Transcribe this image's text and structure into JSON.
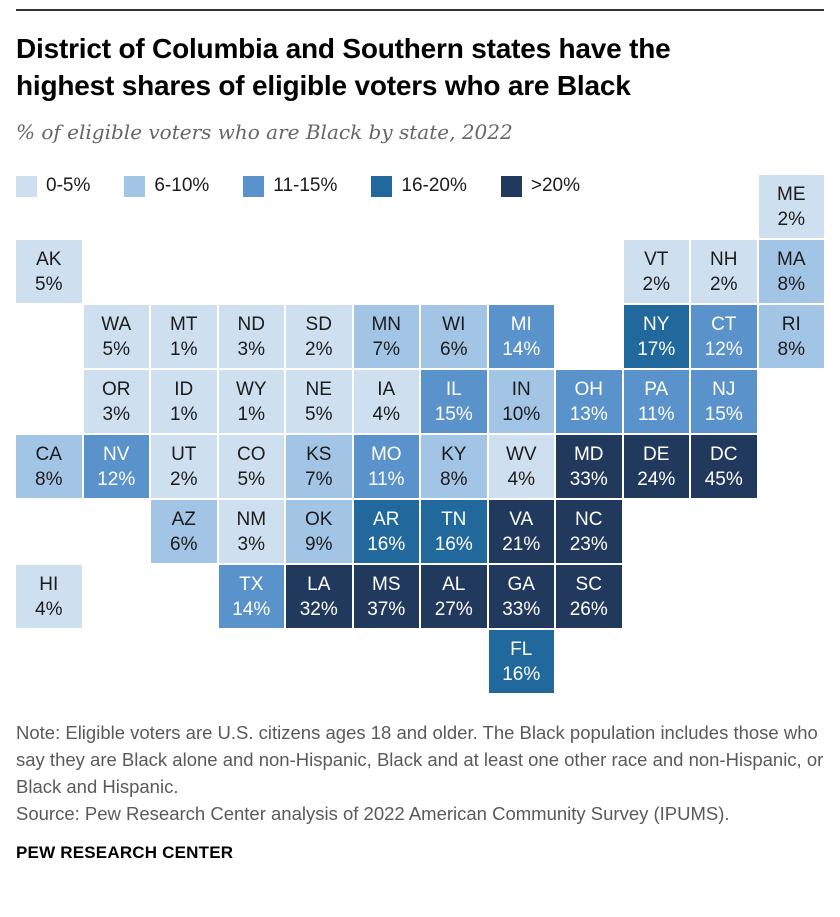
{
  "header": {
    "title_line1": "District of Columbia and Southern states have the",
    "title_line2": "highest shares of eligible voters who are Black",
    "subtitle": "% of eligible voters who are Black by state, 2022"
  },
  "legend": {
    "items": [
      {
        "label": "0-5%",
        "color": "#CEDFEF",
        "text_color": "#1c1c1c"
      },
      {
        "label": "6-10%",
        "color": "#A2C4E5",
        "text_color": "#1c1c1c"
      },
      {
        "label": "11-15%",
        "color": "#5A92CC",
        "text_color": "#ffffff"
      },
      {
        "label": "16-20%",
        "color": "#21699C",
        "text_color": "#ffffff"
      },
      {
        "label": ">20%",
        "color": "#22395E",
        "text_color": "#ffffff"
      }
    ]
  },
  "chart_data": {
    "type": "heatmap",
    "subtype": "us-state-tile-map",
    "title": "District of Columbia and Southern states have the highest shares of eligible voters who are Black",
    "subtitle": "% of eligible voters who are Black by state, 2022",
    "unit": "percent",
    "buckets": [
      "0-5%",
      "6-10%",
      "11-15%",
      "16-20%",
      ">20%"
    ],
    "legend_position": "top-left",
    "states": [
      {
        "abbr": "ME",
        "pct": 2,
        "label": "2%",
        "bucket": 0,
        "row": 1,
        "col": 12
      },
      {
        "abbr": "AK",
        "pct": 5,
        "label": "5%",
        "bucket": 0,
        "row": 2,
        "col": 1
      },
      {
        "abbr": "VT",
        "pct": 2,
        "label": "2%",
        "bucket": 0,
        "row": 2,
        "col": 10
      },
      {
        "abbr": "NH",
        "pct": 2,
        "label": "2%",
        "bucket": 0,
        "row": 2,
        "col": 11
      },
      {
        "abbr": "MA",
        "pct": 8,
        "label": "8%",
        "bucket": 1,
        "row": 2,
        "col": 12
      },
      {
        "abbr": "WA",
        "pct": 5,
        "label": "5%",
        "bucket": 0,
        "row": 3,
        "col": 2
      },
      {
        "abbr": "MT",
        "pct": 1,
        "label": "1%",
        "bucket": 0,
        "row": 3,
        "col": 3
      },
      {
        "abbr": "ND",
        "pct": 3,
        "label": "3%",
        "bucket": 0,
        "row": 3,
        "col": 4
      },
      {
        "abbr": "SD",
        "pct": 2,
        "label": "2%",
        "bucket": 0,
        "row": 3,
        "col": 5
      },
      {
        "abbr": "MN",
        "pct": 7,
        "label": "7%",
        "bucket": 1,
        "row": 3,
        "col": 6
      },
      {
        "abbr": "WI",
        "pct": 6,
        "label": "6%",
        "bucket": 1,
        "row": 3,
        "col": 7
      },
      {
        "abbr": "MI",
        "pct": 14,
        "label": "14%",
        "bucket": 2,
        "row": 3,
        "col": 8
      },
      {
        "abbr": "NY",
        "pct": 17,
        "label": "17%",
        "bucket": 3,
        "row": 3,
        "col": 10
      },
      {
        "abbr": "CT",
        "pct": 12,
        "label": "12%",
        "bucket": 2,
        "row": 3,
        "col": 11
      },
      {
        "abbr": "RI",
        "pct": 8,
        "label": "8%",
        "bucket": 1,
        "row": 3,
        "col": 12
      },
      {
        "abbr": "OR",
        "pct": 3,
        "label": "3%",
        "bucket": 0,
        "row": 4,
        "col": 2
      },
      {
        "abbr": "ID",
        "pct": 1,
        "label": "1%",
        "bucket": 0,
        "row": 4,
        "col": 3
      },
      {
        "abbr": "WY",
        "pct": 1,
        "label": "1%",
        "bucket": 0,
        "row": 4,
        "col": 4
      },
      {
        "abbr": "NE",
        "pct": 5,
        "label": "5%",
        "bucket": 0,
        "row": 4,
        "col": 5
      },
      {
        "abbr": "IA",
        "pct": 4,
        "label": "4%",
        "bucket": 0,
        "row": 4,
        "col": 6
      },
      {
        "abbr": "IL",
        "pct": 15,
        "label": "15%",
        "bucket": 2,
        "row": 4,
        "col": 7
      },
      {
        "abbr": "IN",
        "pct": 10,
        "label": "10%",
        "bucket": 1,
        "row": 4,
        "col": 8
      },
      {
        "abbr": "OH",
        "pct": 13,
        "label": "13%",
        "bucket": 2,
        "row": 4,
        "col": 9
      },
      {
        "abbr": "PA",
        "pct": 11,
        "label": "11%",
        "bucket": 2,
        "row": 4,
        "col": 10
      },
      {
        "abbr": "NJ",
        "pct": 15,
        "label": "15%",
        "bucket": 2,
        "row": 4,
        "col": 11
      },
      {
        "abbr": "CA",
        "pct": 8,
        "label": "8%",
        "bucket": 1,
        "row": 5,
        "col": 1
      },
      {
        "abbr": "NV",
        "pct": 12,
        "label": "12%",
        "bucket": 2,
        "row": 5,
        "col": 2
      },
      {
        "abbr": "UT",
        "pct": 2,
        "label": "2%",
        "bucket": 0,
        "row": 5,
        "col": 3
      },
      {
        "abbr": "CO",
        "pct": 5,
        "label": "5%",
        "bucket": 0,
        "row": 5,
        "col": 4
      },
      {
        "abbr": "KS",
        "pct": 7,
        "label": "7%",
        "bucket": 1,
        "row": 5,
        "col": 5
      },
      {
        "abbr": "MO",
        "pct": 11,
        "label": "11%",
        "bucket": 2,
        "row": 5,
        "col": 6
      },
      {
        "abbr": "KY",
        "pct": 8,
        "label": "8%",
        "bucket": 1,
        "row": 5,
        "col": 7
      },
      {
        "abbr": "WV",
        "pct": 4,
        "label": "4%",
        "bucket": 0,
        "row": 5,
        "col": 8
      },
      {
        "abbr": "MD",
        "pct": 33,
        "label": "33%",
        "bucket": 4,
        "row": 5,
        "col": 9
      },
      {
        "abbr": "DE",
        "pct": 24,
        "label": "24%",
        "bucket": 4,
        "row": 5,
        "col": 10
      },
      {
        "abbr": "DC",
        "pct": 45,
        "label": "45%",
        "bucket": 4,
        "row": 5,
        "col": 11
      },
      {
        "abbr": "AZ",
        "pct": 6,
        "label": "6%",
        "bucket": 1,
        "row": 6,
        "col": 3
      },
      {
        "abbr": "NM",
        "pct": 3,
        "label": "3%",
        "bucket": 0,
        "row": 6,
        "col": 4
      },
      {
        "abbr": "OK",
        "pct": 9,
        "label": "9%",
        "bucket": 1,
        "row": 6,
        "col": 5
      },
      {
        "abbr": "AR",
        "pct": 16,
        "label": "16%",
        "bucket": 3,
        "row": 6,
        "col": 6
      },
      {
        "abbr": "TN",
        "pct": 16,
        "label": "16%",
        "bucket": 3,
        "row": 6,
        "col": 7
      },
      {
        "abbr": "VA",
        "pct": 21,
        "label": "21%",
        "bucket": 4,
        "row": 6,
        "col": 8
      },
      {
        "abbr": "NC",
        "pct": 23,
        "label": "23%",
        "bucket": 4,
        "row": 6,
        "col": 9
      },
      {
        "abbr": "HI",
        "pct": 4,
        "label": "4%",
        "bucket": 0,
        "row": 7,
        "col": 1
      },
      {
        "abbr": "TX",
        "pct": 14,
        "label": "14%",
        "bucket": 2,
        "row": 7,
        "col": 4
      },
      {
        "abbr": "LA",
        "pct": 32,
        "label": "32%",
        "bucket": 4,
        "row": 7,
        "col": 5
      },
      {
        "abbr": "MS",
        "pct": 37,
        "label": "37%",
        "bucket": 4,
        "row": 7,
        "col": 6
      },
      {
        "abbr": "AL",
        "pct": 27,
        "label": "27%",
        "bucket": 4,
        "row": 7,
        "col": 7
      },
      {
        "abbr": "GA",
        "pct": 33,
        "label": "33%",
        "bucket": 4,
        "row": 7,
        "col": 8
      },
      {
        "abbr": "SC",
        "pct": 26,
        "label": "26%",
        "bucket": 4,
        "row": 7,
        "col": 9
      },
      {
        "abbr": "FL",
        "pct": 16,
        "label": "16%",
        "bucket": 3,
        "row": 8,
        "col": 8
      }
    ]
  },
  "footer": {
    "note": "Note: Eligible voters are U.S. citizens ages 18 and older. The Black population includes those who say they are Black alone and non-Hispanic, Black and at least one other race and non-Hispanic, or Black and Hispanic.",
    "source": "Source: Pew Research Center analysis of 2022 American Community Survey (IPUMS).",
    "brand": "PEW RESEARCH CENTER"
  }
}
